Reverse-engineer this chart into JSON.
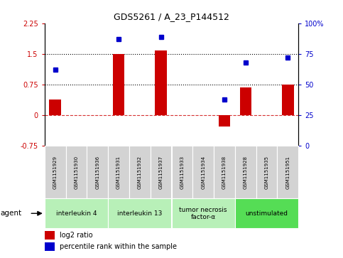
{
  "title": "GDS5261 / A_23_P144512",
  "samples": [
    "GSM1151929",
    "GSM1151930",
    "GSM1151936",
    "GSM1151931",
    "GSM1151932",
    "GSM1151937",
    "GSM1151933",
    "GSM1151934",
    "GSM1151938",
    "GSM1151928",
    "GSM1151935",
    "GSM1151951"
  ],
  "log2_ratio": [
    0.38,
    0.0,
    0.0,
    1.5,
    0.0,
    1.58,
    0.0,
    0.0,
    -0.28,
    0.68,
    0.0,
    0.75
  ],
  "percentile": [
    62,
    0,
    0,
    87,
    0,
    89,
    0,
    0,
    38,
    68,
    0,
    72
  ],
  "has_percentile": [
    true,
    false,
    false,
    true,
    false,
    true,
    false,
    false,
    true,
    true,
    false,
    true
  ],
  "has_log2": [
    true,
    false,
    false,
    true,
    false,
    true,
    false,
    false,
    true,
    true,
    false,
    true
  ],
  "agents": [
    {
      "label": "interleukin 4",
      "start": 0,
      "end": 3,
      "color": "#b8f0b8"
    },
    {
      "label": "interleukin 13",
      "start": 3,
      "end": 6,
      "color": "#b8f0b8"
    },
    {
      "label": "tumor necrosis\nfactor-α",
      "start": 6,
      "end": 9,
      "color": "#b8f0b8"
    },
    {
      "label": "unstimulated",
      "start": 9,
      "end": 12,
      "color": "#55dd55"
    }
  ],
  "bar_color": "#cc0000",
  "dot_color": "#0000cc",
  "ylim_left": [
    -0.75,
    2.25
  ],
  "ylim_right": [
    0,
    100
  ],
  "yticks_left": [
    -0.75,
    0,
    0.75,
    1.5,
    2.25
  ],
  "yticks_right": [
    0,
    25,
    50,
    75,
    100
  ],
  "hline_dotted": [
    0.75,
    1.5
  ],
  "hline_dashed": 0.0,
  "background_color": "#ffffff",
  "plot_bg": "#ffffff",
  "legend_log2": "log2 ratio",
  "legend_pct": "percentile rank within the sample",
  "sample_cell_bg": "#d3d3d3",
  "agent_label": "agent"
}
